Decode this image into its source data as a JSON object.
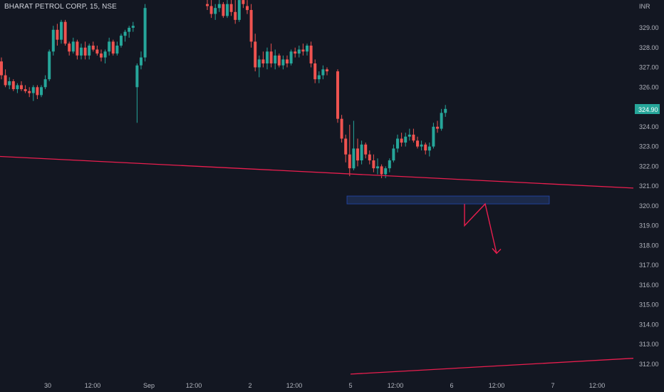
{
  "header": {
    "title": "BHARAT PETROL CORP, 15, NSE"
  },
  "chart_data": {
    "type": "candlestick",
    "title": "BHARAT PETROL CORP, 15, NSE",
    "currency_label": "INR",
    "last_price_label": "324.90",
    "y_ticks": [
      329.0,
      328.0,
      327.0,
      326.0,
      325.0,
      324.0,
      323.0,
      322.0,
      321.0,
      320.0,
      319.0,
      318.0,
      317.0,
      316.0,
      315.0,
      314.0,
      313.0,
      312.0
    ],
    "ylim": [
      311.5,
      330.3
    ],
    "x_ticks": [
      "30",
      "12:00",
      "Sep",
      "12:00",
      "2",
      "12:00",
      "5",
      "12:00",
      "6",
      "12:00",
      "7",
      "12:00"
    ],
    "colors": {
      "up": "#26a69a",
      "down": "#ef5350",
      "background": "#131722",
      "trendline": "#e91e4e",
      "zone_border": "#2962ff",
      "price_tag": "#26a69a"
    },
    "candles": [
      [
        327.3,
        327.5,
        326.4,
        326.6
      ],
      [
        326.6,
        326.9,
        326.0,
        326.1
      ],
      [
        326.1,
        326.5,
        325.9,
        326.3
      ],
      [
        326.3,
        326.4,
        325.8,
        325.9
      ],
      [
        325.9,
        326.2,
        325.7,
        326.1
      ],
      [
        326.1,
        326.3,
        325.8,
        325.9
      ],
      [
        325.9,
        326.1,
        325.7,
        325.8
      ],
      [
        325.8,
        326.0,
        325.5,
        325.7
      ],
      [
        325.7,
        326.1,
        325.3,
        326.0
      ],
      [
        326.0,
        326.1,
        325.4,
        325.6
      ],
      [
        325.6,
        326.1,
        325.5,
        326.0
      ],
      [
        326.0,
        326.6,
        325.9,
        326.4
      ],
      [
        326.4,
        327.9,
        326.3,
        327.8
      ],
      [
        327.8,
        329.1,
        327.6,
        328.9
      ],
      [
        328.9,
        329.2,
        328.1,
        328.4
      ],
      [
        328.4,
        329.4,
        328.2,
        329.3
      ],
      [
        329.3,
        329.4,
        328.1,
        328.2
      ],
      [
        328.2,
        328.3,
        327.6,
        327.8
      ],
      [
        327.8,
        328.5,
        327.7,
        328.3
      ],
      [
        328.3,
        328.4,
        327.4,
        327.6
      ],
      [
        327.6,
        328.2,
        327.4,
        328.0
      ],
      [
        328.0,
        328.3,
        327.4,
        327.6
      ],
      [
        327.6,
        328.2,
        327.4,
        328.1
      ],
      [
        328.1,
        328.3,
        327.8,
        327.9
      ],
      [
        327.9,
        328.1,
        327.6,
        327.7
      ],
      [
        327.7,
        327.9,
        327.3,
        327.5
      ],
      [
        327.5,
        327.9,
        327.2,
        327.8
      ],
      [
        327.8,
        328.5,
        327.6,
        328.3
      ],
      [
        328.3,
        328.4,
        327.6,
        327.7
      ],
      [
        327.7,
        328.3,
        327.6,
        328.1
      ],
      [
        328.1,
        328.7,
        328.0,
        328.6
      ],
      [
        328.6,
        328.9,
        328.3,
        328.8
      ],
      [
        328.8,
        329.1,
        328.5,
        329.0
      ],
      [
        329.0,
        329.3,
        328.8,
        329.1
      ],
      [
        326.0,
        327.2,
        324.2,
        327.1
      ],
      [
        327.1,
        327.8,
        326.9,
        327.5
      ],
      [
        327.5,
        330.2,
        327.3,
        330.0
      ],
      [
        330.2,
        330.5,
        329.9,
        330.1
      ],
      [
        330.1,
        330.4,
        329.5,
        329.7
      ],
      [
        329.7,
        330.2,
        329.4,
        330.0
      ],
      [
        330.0,
        330.5,
        329.8,
        330.2
      ],
      [
        330.2,
        330.3,
        329.5,
        329.6
      ],
      [
        329.6,
        330.4,
        329.5,
        330.2
      ],
      [
        330.2,
        330.5,
        329.6,
        329.8
      ],
      [
        329.8,
        330.4,
        329.2,
        329.4
      ],
      [
        329.4,
        330.6,
        329.3,
        330.4
      ],
      [
        330.4,
        330.5,
        330.0,
        330.2
      ],
      [
        330.1,
        330.4,
        329.7,
        329.9
      ],
      [
        329.9,
        330.2,
        328.0,
        328.3
      ],
      [
        328.3,
        328.7,
        326.8,
        327.0
      ],
      [
        327.0,
        327.6,
        326.5,
        327.4
      ],
      [
        327.4,
        327.8,
        327.0,
        327.2
      ],
      [
        327.2,
        328.0,
        326.9,
        327.8
      ],
      [
        327.8,
        328.2,
        327.0,
        327.2
      ],
      [
        327.2,
        327.9,
        326.9,
        327.6
      ],
      [
        327.6,
        327.7,
        327.0,
        327.1
      ],
      [
        327.1,
        327.6,
        326.9,
        327.4
      ],
      [
        327.4,
        327.6,
        327.0,
        327.2
      ],
      [
        327.2,
        327.9,
        327.1,
        327.8
      ],
      [
        327.8,
        328.0,
        327.5,
        327.7
      ],
      [
        327.7,
        328.1,
        327.5,
        327.9
      ],
      [
        327.9,
        328.2,
        327.6,
        327.8
      ],
      [
        327.8,
        328.2,
        327.6,
        328.1
      ],
      [
        328.1,
        328.3,
        327.0,
        327.2
      ],
      [
        327.2,
        327.4,
        326.2,
        326.4
      ],
      [
        326.4,
        326.8,
        326.2,
        326.6
      ],
      [
        326.6,
        327.1,
        326.4,
        326.9
      ],
      [
        326.9,
        327.0,
        326.6,
        326.8
      ],
      [
        326.8,
        326.9,
        324.2,
        324.4
      ],
      [
        324.4,
        324.6,
        323.2,
        323.4
      ],
      [
        323.4,
        323.6,
        322.2,
        322.6
      ],
      [
        322.6,
        324.1,
        321.5,
        321.9
      ],
      [
        321.9,
        324.3,
        321.8,
        322.9
      ],
      [
        322.9,
        323.4,
        322.0,
        322.3
      ],
      [
        322.3,
        323.3,
        322.1,
        323.1
      ],
      [
        323.1,
        323.2,
        322.4,
        322.6
      ],
      [
        322.6,
        322.8,
        322.1,
        322.3
      ],
      [
        322.3,
        322.6,
        321.7,
        321.9
      ],
      [
        321.9,
        322.4,
        321.6,
        322.0
      ],
      [
        322.0,
        322.1,
        321.4,
        321.6
      ],
      [
        321.6,
        322.0,
        321.4,
        321.9
      ],
      [
        321.9,
        322.4,
        321.7,
        322.3
      ],
      [
        322.3,
        323.1,
        322.2,
        322.9
      ],
      [
        322.9,
        323.6,
        322.7,
        323.4
      ],
      [
        323.4,
        323.7,
        323.0,
        323.2
      ],
      [
        323.2,
        323.7,
        323.0,
        323.5
      ],
      [
        323.5,
        323.9,
        323.3,
        323.6
      ],
      [
        323.6,
        323.9,
        323.2,
        323.3
      ],
      [
        323.3,
        323.5,
        322.9,
        323.0
      ],
      [
        323.0,
        323.3,
        322.8,
        323.1
      ],
      [
        323.1,
        323.2,
        322.6,
        322.8
      ],
      [
        322.8,
        323.2,
        322.5,
        323.0
      ],
      [
        323.0,
        324.2,
        322.9,
        324.0
      ],
      [
        324.0,
        324.3,
        323.7,
        323.9
      ],
      [
        323.9,
        324.9,
        323.8,
        324.7
      ],
      [
        324.7,
        325.1,
        324.5,
        324.9
      ]
    ],
    "annotations": {
      "trendline_upper": [
        [
          0,
          322.5
        ],
        [
          889,
          320.9
        ]
      ],
      "trendline_lower": [
        [
          492,
          311.5
        ],
        [
          889,
          312.3
        ]
      ],
      "zone": {
        "top": 320.5,
        "bottom": 320.1
      },
      "arrow_path_prices": [
        320.1,
        319.0,
        320.1,
        317.6
      ]
    }
  }
}
